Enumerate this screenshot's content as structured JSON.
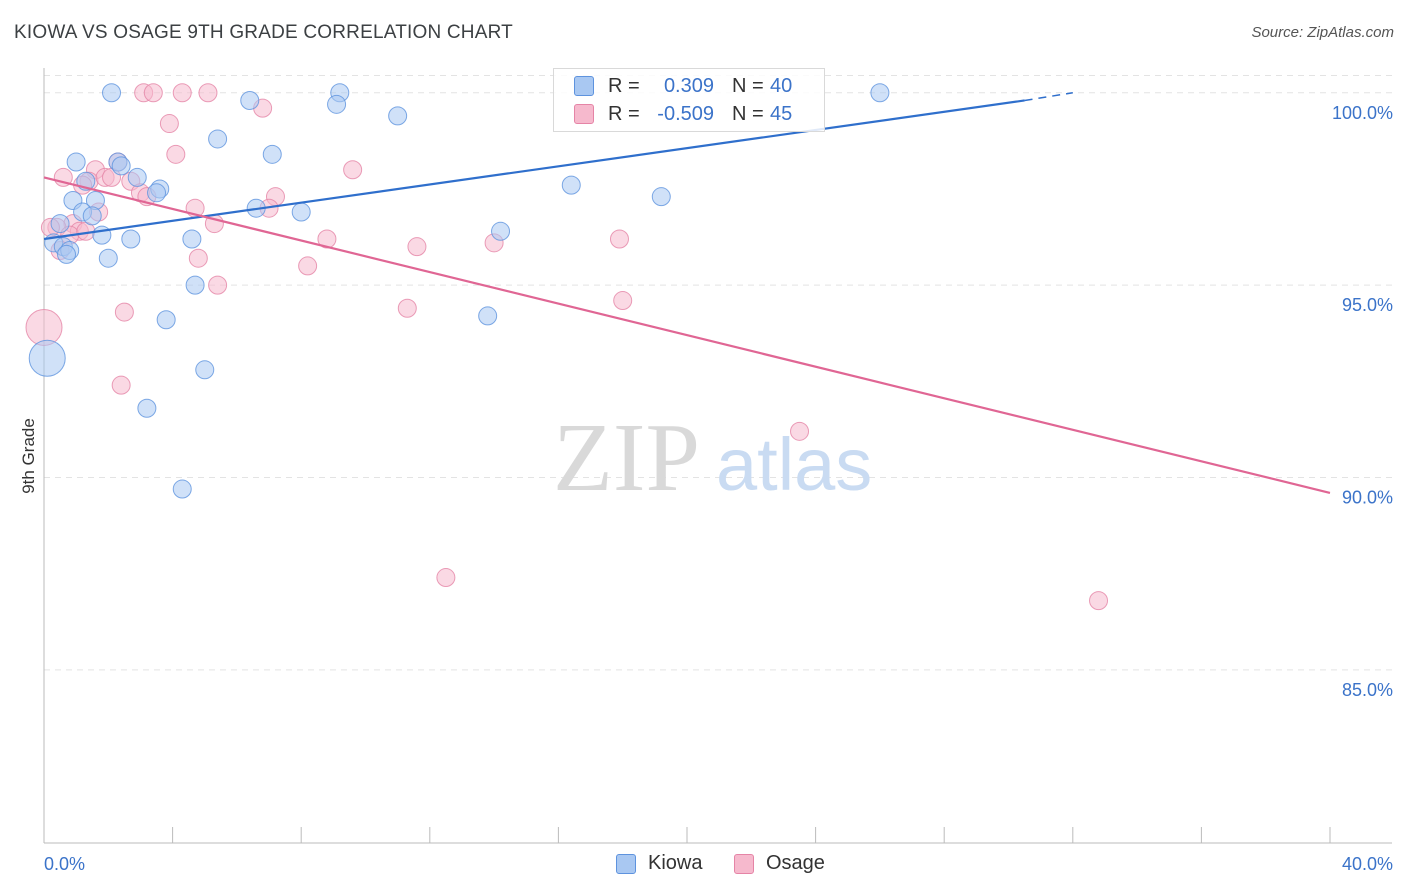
{
  "title": "KIOWA VS OSAGE 9TH GRADE CORRELATION CHART",
  "source": "Source: ZipAtlas.com",
  "watermark": {
    "zip": "ZIP",
    "atlas": "atlas"
  },
  "legend": {
    "kiowa": {
      "r_label": "R =",
      "r_value": "0.309",
      "n_label": "N =",
      "n_value": "40"
    },
    "osage": {
      "r_label": "R =",
      "r_value": "-0.509",
      "n_label": "N =",
      "n_value": "45"
    }
  },
  "bottom_legend": {
    "kiowa": "Kiowa",
    "osage": "Osage"
  },
  "colors": {
    "kiowa_fill": "#a9c8f2",
    "kiowa_stroke": "#5e93de",
    "kiowa_line": "#2f6fcc",
    "osage_fill": "#f6b9cd",
    "osage_stroke": "#e584a6",
    "osage_line": "#e06694",
    "axis_text": "#3b73c9",
    "grid": "#e3e3e3"
  },
  "chart_data": {
    "type": "scatter",
    "ylabel": "9th Grade",
    "xlabel": "",
    "xlim": [
      0,
      40
    ],
    "ylim": [
      80.5,
      100.8
    ],
    "x_tick_labels": [
      {
        "value": 0,
        "label": "0.0%"
      },
      {
        "value": 40,
        "label": "40.0%"
      }
    ],
    "y_ticks": [
      {
        "value": 100,
        "label": "100.0%"
      },
      {
        "value": 95,
        "label": "95.0%"
      },
      {
        "value": 90,
        "label": "90.0%"
      },
      {
        "value": 85,
        "label": "85.0%"
      }
    ],
    "grid": true,
    "series": [
      {
        "name": "Kiowa",
        "points": [
          [
            2.1,
            100.0
          ],
          [
            9.2,
            100.0
          ],
          [
            26.0,
            100.0
          ],
          [
            6.4,
            99.8
          ],
          [
            9.1,
            99.7
          ],
          [
            11.0,
            99.4
          ],
          [
            5.4,
            98.8
          ],
          [
            7.1,
            98.4
          ],
          [
            2.3,
            98.2
          ],
          [
            2.4,
            98.1
          ],
          [
            1.0,
            98.2
          ],
          [
            1.3,
            97.7
          ],
          [
            2.9,
            97.8
          ],
          [
            3.6,
            97.5
          ],
          [
            16.4,
            97.6
          ],
          [
            19.2,
            97.3
          ],
          [
            0.9,
            97.2
          ],
          [
            1.6,
            97.2
          ],
          [
            1.2,
            96.9
          ],
          [
            6.6,
            97.0
          ],
          [
            1.5,
            96.8
          ],
          [
            0.5,
            96.6
          ],
          [
            1.8,
            96.3
          ],
          [
            2.7,
            96.2
          ],
          [
            4.6,
            96.2
          ],
          [
            14.2,
            96.4
          ],
          [
            0.3,
            96.1
          ],
          [
            0.6,
            96.0
          ],
          [
            0.8,
            95.9
          ],
          [
            0.7,
            95.8
          ],
          [
            2.0,
            95.7
          ],
          [
            4.7,
            95.0
          ],
          [
            3.8,
            94.1
          ],
          [
            13.8,
            94.2
          ],
          [
            0.1,
            93.1
          ],
          [
            5.0,
            92.8
          ],
          [
            3.2,
            91.8
          ],
          [
            4.3,
            89.7
          ],
          [
            3.5,
            97.4
          ],
          [
            8.0,
            96.9
          ]
        ],
        "sizes": [
          1,
          1,
          1,
          1,
          1,
          1,
          1,
          1,
          1,
          1,
          1,
          1,
          1,
          1,
          1,
          1,
          1,
          1,
          1,
          1,
          1,
          1,
          1,
          1,
          1,
          1,
          1,
          1,
          1,
          1,
          1,
          1,
          1,
          1,
          2,
          1,
          1,
          1,
          0,
          0
        ]
      },
      {
        "name": "Osage",
        "points": [
          [
            3.1,
            100.0
          ],
          [
            3.4,
            100.0
          ],
          [
            4.3,
            100.0
          ],
          [
            5.1,
            100.0
          ],
          [
            6.8,
            99.6
          ],
          [
            3.9,
            99.2
          ],
          [
            4.1,
            98.4
          ],
          [
            2.3,
            98.2
          ],
          [
            1.6,
            98.0
          ],
          [
            9.6,
            98.0
          ],
          [
            0.6,
            97.8
          ],
          [
            1.4,
            97.7
          ],
          [
            1.9,
            97.8
          ],
          [
            2.1,
            97.8
          ],
          [
            2.7,
            97.7
          ],
          [
            1.2,
            97.6
          ],
          [
            3.0,
            97.4
          ],
          [
            3.2,
            97.3
          ],
          [
            7.2,
            97.3
          ],
          [
            4.7,
            97.0
          ],
          [
            7.0,
            97.0
          ],
          [
            1.7,
            96.9
          ],
          [
            0.9,
            96.6
          ],
          [
            5.3,
            96.6
          ],
          [
            0.4,
            96.5
          ],
          [
            1.1,
            96.4
          ],
          [
            0.8,
            96.3
          ],
          [
            8.8,
            96.2
          ],
          [
            17.9,
            96.2
          ],
          [
            14.0,
            96.1
          ],
          [
            11.6,
            96.0
          ],
          [
            0.5,
            95.9
          ],
          [
            4.8,
            95.7
          ],
          [
            8.2,
            95.5
          ],
          [
            5.4,
            95.0
          ],
          [
            18.0,
            94.6
          ],
          [
            2.5,
            94.3
          ],
          [
            11.3,
            94.4
          ],
          [
            0.0,
            93.9
          ],
          [
            2.4,
            92.4
          ],
          [
            23.5,
            91.2
          ],
          [
            12.5,
            87.4
          ],
          [
            32.8,
            86.8
          ],
          [
            1.3,
            96.4
          ],
          [
            0.2,
            96.5
          ]
        ],
        "sizes": [
          1,
          1,
          1,
          1,
          1,
          1,
          1,
          1,
          1,
          1,
          1,
          1,
          1,
          1,
          1,
          1,
          1,
          1,
          1,
          1,
          1,
          1,
          1,
          1,
          1,
          1,
          1,
          1,
          1,
          1,
          1,
          1,
          1,
          1,
          1,
          1,
          1,
          1,
          2,
          1,
          1,
          1,
          1,
          0,
          0
        ]
      }
    ],
    "trend_lines": [
      {
        "name": "Kiowa",
        "x": [
          0,
          30.5
        ],
        "y": [
          96.2,
          99.8
        ],
        "dashed_to": [
          32.0,
          100.0
        ]
      },
      {
        "name": "Osage",
        "x": [
          0,
          40
        ],
        "y": [
          97.8,
          89.6
        ]
      }
    ]
  }
}
